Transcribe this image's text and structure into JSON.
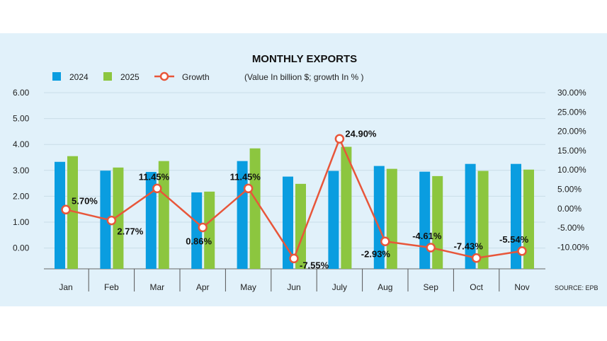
{
  "chart_data": {
    "type": "bar",
    "title": "MONTHLY EXPORTS",
    "subtitle": "(Value In billion $; growth In % )",
    "categories": [
      "Jan",
      "Feb",
      "Mar",
      "Apr",
      "May",
      "Jun",
      "July",
      "Aug",
      "Sep",
      "Oct",
      "Nov"
    ],
    "series": [
      {
        "name": "2024",
        "color": "#0a9de0",
        "values": [
          3.34,
          3.0,
          2.95,
          2.16,
          3.37,
          2.77,
          2.99,
          3.18,
          2.96,
          3.26,
          3.26
        ]
      },
      {
        "name": "2025",
        "color": "#8cc63f",
        "values": [
          3.56,
          3.12,
          3.37,
          2.19,
          3.86,
          2.49,
          3.92,
          3.07,
          2.79,
          2.99,
          3.04
        ]
      },
      {
        "name": "Growth",
        "type": "line",
        "axis": "right",
        "color": "#e8563a",
        "values": [
          5.7,
          2.77,
          11.45,
          0.86,
          11.45,
          -7.55,
          24.9,
          -2.93,
          -4.61,
          -7.43,
          -5.54
        ],
        "labels": [
          "5.70%",
          "2.77%",
          "11.45%",
          "0.86%",
          "11.45%",
          "-7.55%",
          "24.90%",
          "-2.93%",
          "-4.61%",
          "-7.43%",
          "-5.54%"
        ]
      }
    ],
    "left_ticks": [
      "6.00",
      "5.00",
      "4.00",
      "3.00",
      "2.00",
      "1.00",
      "0.00"
    ],
    "right_ticks": [
      "30.00%",
      "25.00%",
      "20.00%",
      "15.00%",
      "10.00%",
      "5.00%",
      "0.00%",
      "-5.00%",
      "-10.00%"
    ],
    "ylim": [
      0,
      6
    ],
    "y2lim": [
      -10,
      30
    ],
    "grid": true,
    "legend_position": "top-left",
    "source": "SOURCE: EPB"
  }
}
